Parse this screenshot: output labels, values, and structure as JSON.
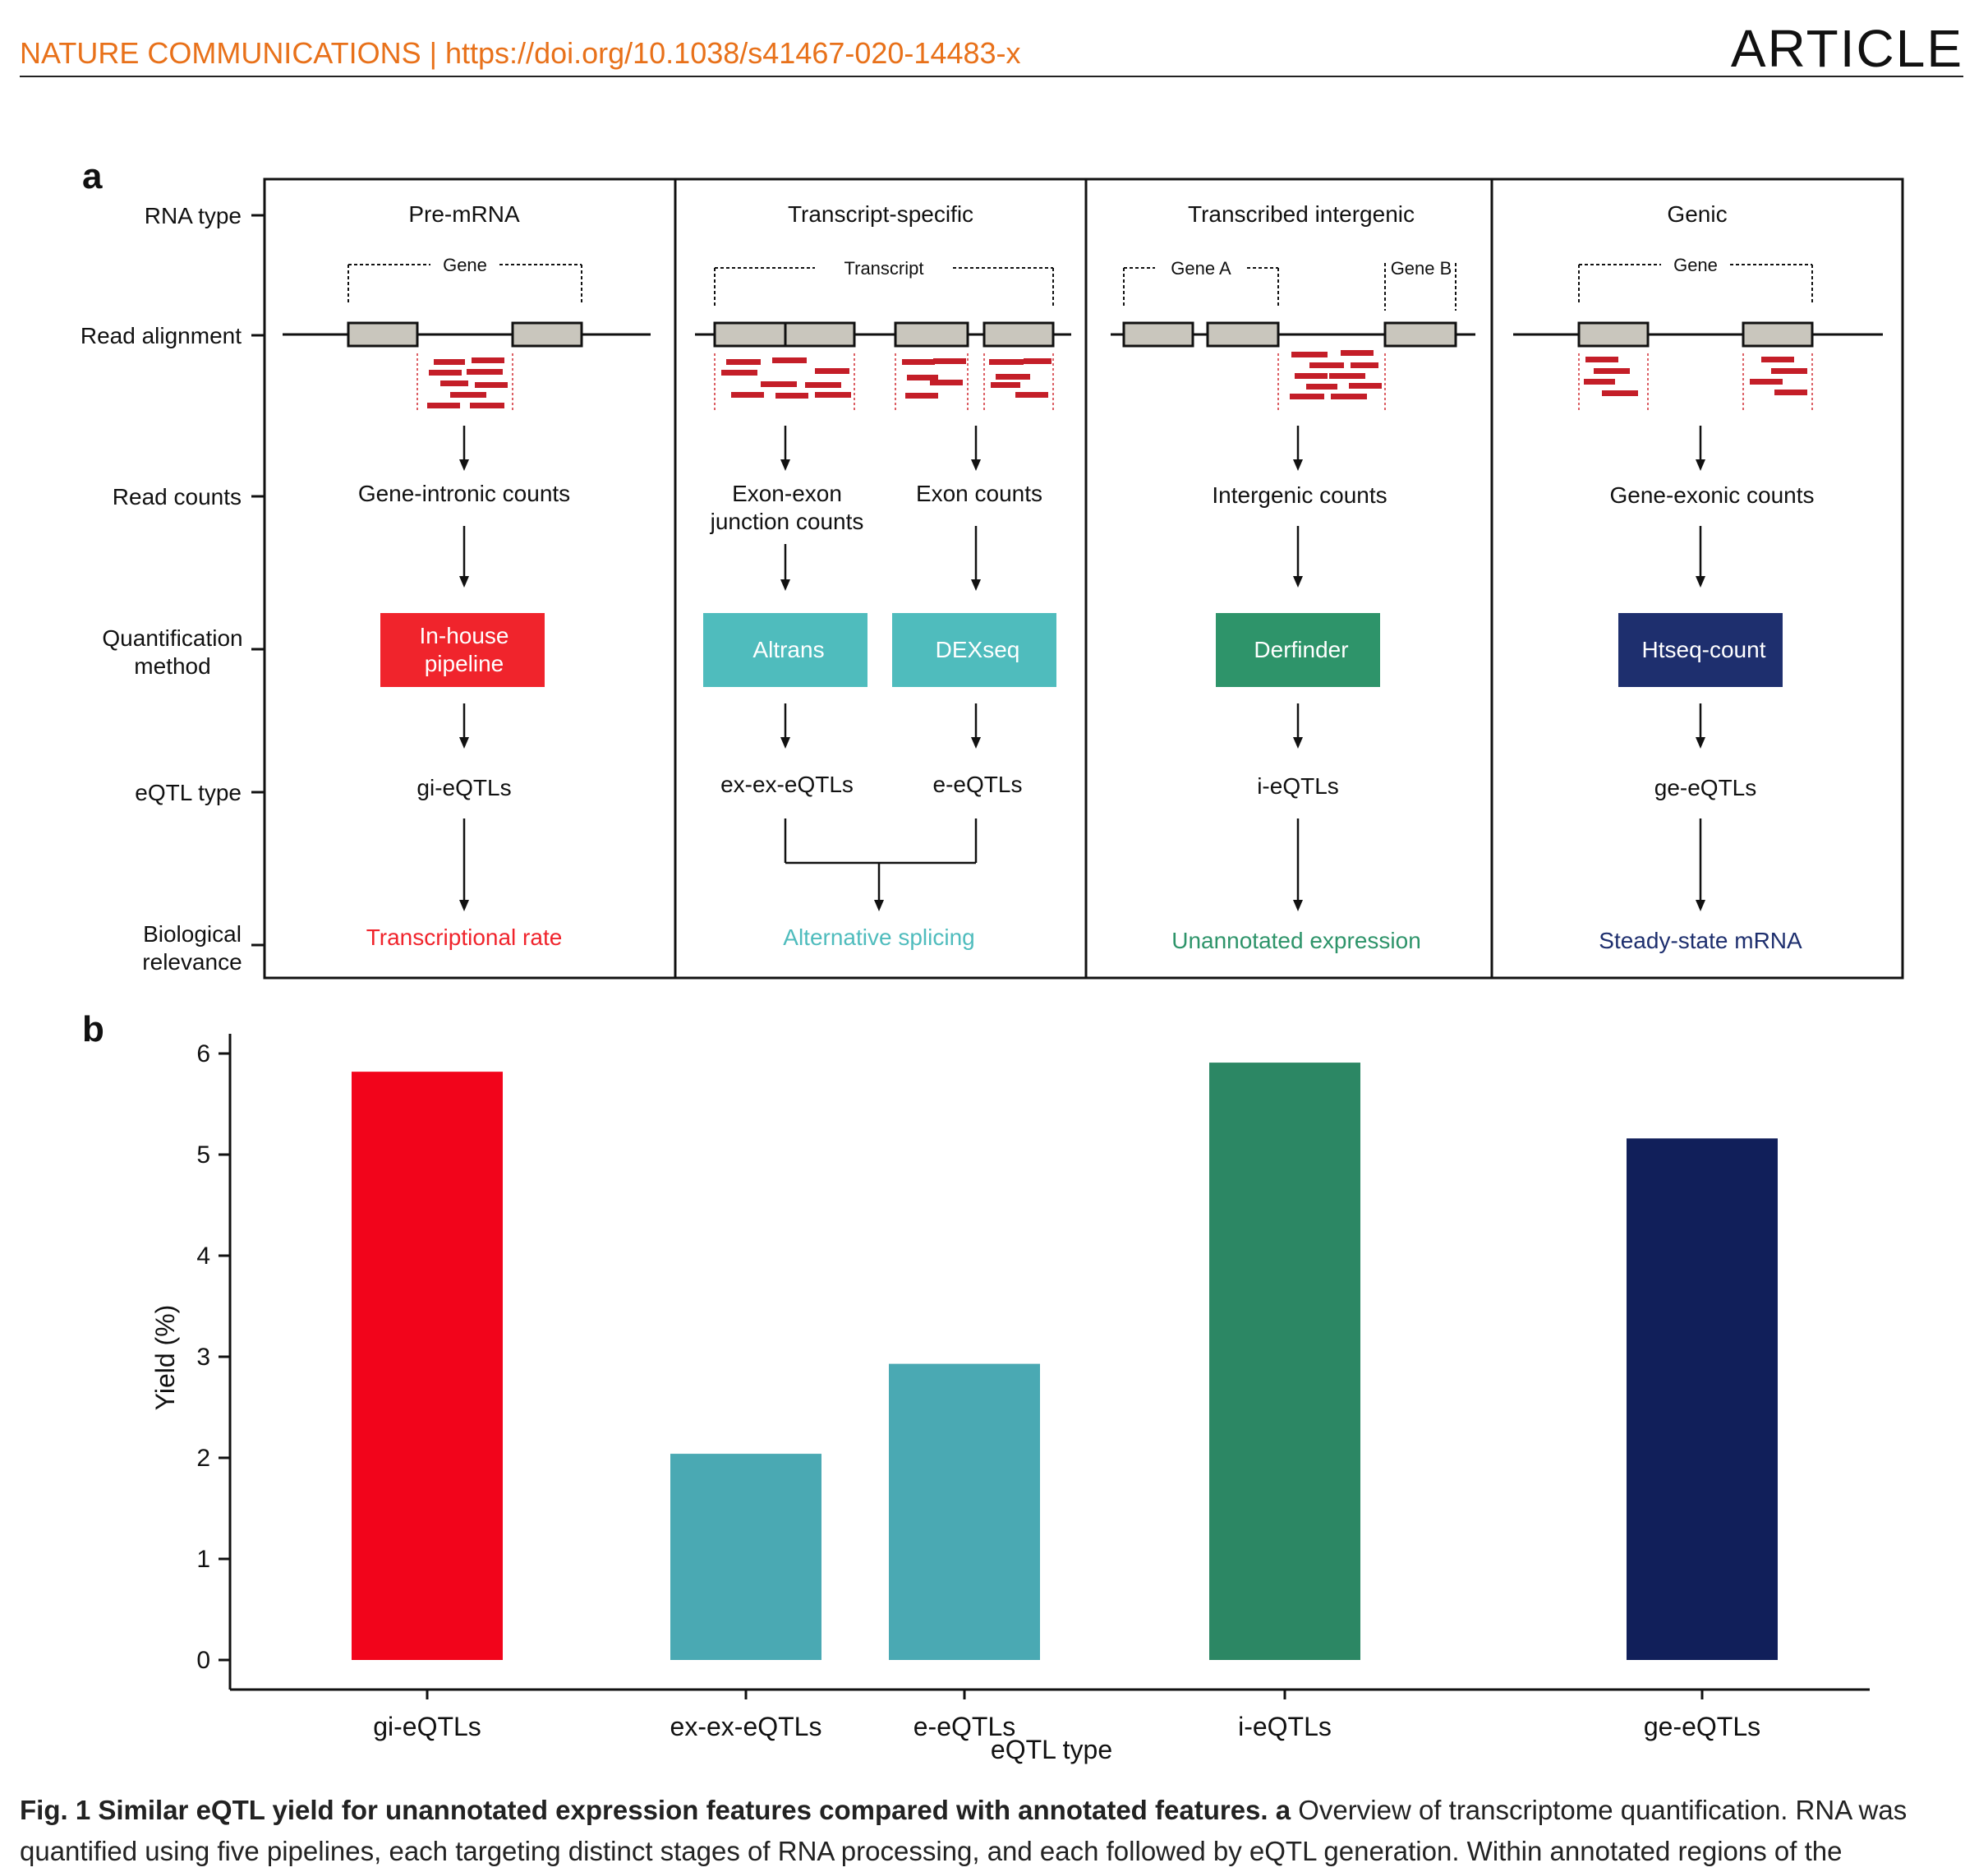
{
  "header": {
    "journal": "NATURE COMMUNICATIONS | https://doi.org/10.1038/s41467-020-14483-x",
    "article_label": "ARTICLE"
  },
  "panel_a": {
    "letter": "a",
    "row_labels": [
      "RNA type",
      "Read alignment",
      "Read counts",
      "Quantification method",
      "eQTL type",
      "Biological relevance"
    ],
    "columns": [
      {
        "rna_type": "Pre-mRNA",
        "brackets": [
          "Gene"
        ],
        "counts": [
          "Gene-intronic counts"
        ],
        "methods": [
          "In-house pipeline"
        ],
        "eqtls": [
          "gi-eQTLs"
        ],
        "relevance": "Transcriptional rate",
        "color": "#f0242c"
      },
      {
        "rna_type": "Transcript-specific",
        "brackets": [
          "Transcript"
        ],
        "counts": [
          "Exon-exon junction counts",
          "Exon counts"
        ],
        "methods": [
          "Altrans",
          "DEXseq"
        ],
        "eqtls": [
          "ex-ex-eQTLs",
          "e-eQTLs"
        ],
        "relevance": "Alternative splicing",
        "color": "#4fbcbd"
      },
      {
        "rna_type": "Transcribed intergenic",
        "brackets": [
          "Gene A",
          "Gene B"
        ],
        "counts": [
          "Intergenic counts"
        ],
        "methods": [
          "Derfinder"
        ],
        "eqtls": [
          "i-eQTLs"
        ],
        "relevance": "Unannotated expression",
        "color": "#2e946a"
      },
      {
        "rna_type": "Genic",
        "brackets": [
          "Gene"
        ],
        "counts": [
          "Gene-exonic counts"
        ],
        "methods": [
          "Htseq-count"
        ],
        "eqtls": [
          "ge-eQTLs"
        ],
        "relevance": "Steady-state mRNA",
        "color": "#1e2f6e"
      }
    ]
  },
  "panel_b": {
    "letter": "b"
  },
  "chart_data": {
    "type": "bar",
    "categories": [
      "gi-eQTLs",
      "ex-ex-eQTLs",
      "e-eQTLs",
      "i-eQTLs",
      "ge-eQTLs"
    ],
    "values": [
      5.82,
      2.04,
      2.93,
      5.91,
      5.16
    ],
    "colors": [
      "#f2041b",
      "#4aa9b3",
      "#4aa9b3",
      "#2c8764",
      "#111f5a"
    ],
    "xlabel": "eQTL type",
    "ylabel": "Yield (%)",
    "ylim": [
      0,
      6
    ],
    "yticks": [
      0,
      1,
      2,
      3,
      4,
      5,
      6
    ],
    "grid": false,
    "legend": "none"
  },
  "caption": {
    "bold": "Fig. 1 Similar eQTL yield for unannotated expression features compared with annotated features. a",
    "text": " Overview of transcriptome quantification. RNA was quantified using five pipelines, each targeting distinct stages of RNA processing, and each followed by eQTL generation. Within annotated regions of the"
  }
}
